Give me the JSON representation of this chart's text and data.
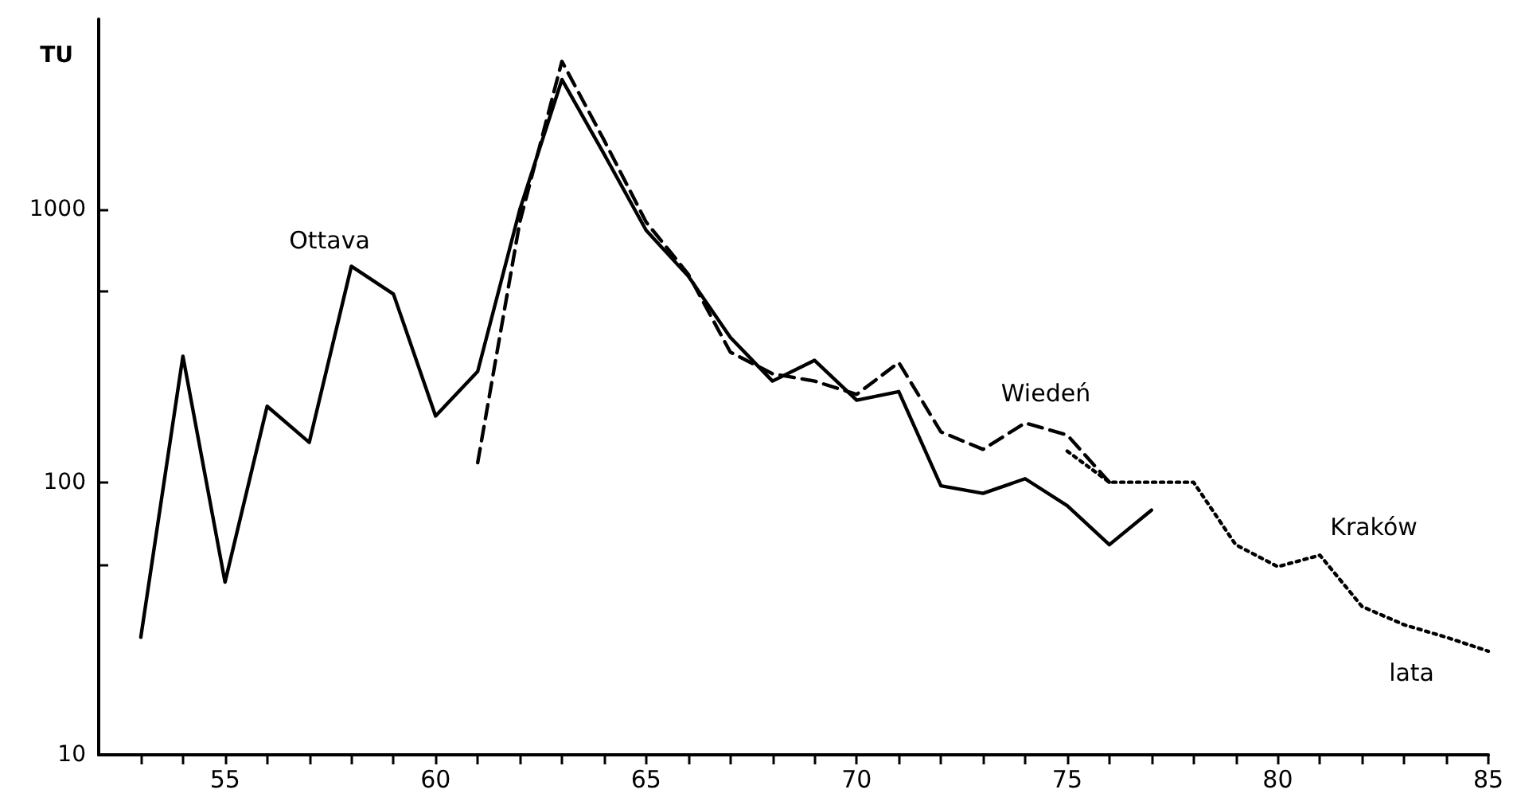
{
  "chart_data": {
    "type": "line",
    "xlabel": "lata",
    "ylabel": "TU",
    "log": "y",
    "grid": false,
    "legend": false,
    "marker": "none",
    "xlim": [
      52,
      85
    ],
    "ylim": [
      10,
      5000
    ],
    "xticks": [
      {
        "value": 53,
        "label": null
      },
      {
        "value": 54,
        "label": null
      },
      55,
      {
        "value": 56,
        "label": null
      },
      {
        "value": 57,
        "label": null
      },
      {
        "value": 58,
        "label": null
      },
      {
        "value": 59,
        "label": null
      },
      60,
      {
        "value": 61,
        "label": null
      },
      {
        "value": 62,
        "label": null
      },
      {
        "value": 63,
        "label": null
      },
      {
        "value": 64,
        "label": null
      },
      65,
      {
        "value": 66,
        "label": null
      },
      {
        "value": 67,
        "label": null
      },
      {
        "value": 68,
        "label": null
      },
      {
        "value": 69,
        "label": null
      },
      70,
      {
        "value": 71,
        "label": null
      },
      {
        "value": 72,
        "label": null
      },
      {
        "value": 73,
        "label": null
      },
      {
        "value": 74,
        "label": null
      },
      75,
      {
        "value": 76,
        "label": null
      },
      {
        "value": 77,
        "label": null
      },
      {
        "value": 78,
        "label": null
      },
      {
        "value": 79,
        "label": null
      },
      80,
      {
        "value": 81,
        "label": null
      },
      {
        "value": 82,
        "label": null
      },
      {
        "value": 83,
        "label": null
      },
      {
        "value": 84,
        "label": null
      },
      85
    ],
    "yticks": [
      10,
      {
        "value": 50,
        "label": null
      },
      100,
      {
        "value": 500,
        "label": null
      },
      1000
    ],
    "series": [
      {
        "name": "Ottava",
        "color": "#000000",
        "line_style": "solid",
        "x": [
          53,
          54,
          55,
          56,
          57,
          58,
          59,
          60,
          61,
          62,
          63,
          64,
          65,
          66,
          67,
          68,
          69,
          70,
          71,
          72,
          73,
          74,
          75,
          76,
          77
        ],
        "values": [
          27,
          290,
          43,
          190,
          140,
          620,
          490,
          175,
          255,
          1000,
          3000,
          1600,
          840,
          570,
          340,
          235,
          280,
          200,
          215,
          97,
          91,
          103,
          82,
          59,
          79
        ]
      },
      {
        "name": "Wiedeń",
        "color": "#000000",
        "line_style": "dashed",
        "x": [
          61,
          62,
          63,
          64,
          65,
          66,
          67,
          68,
          69,
          70,
          71,
          72,
          73,
          74,
          75,
          76
        ],
        "values": [
          118,
          900,
          3500,
          1800,
          900,
          580,
          300,
          250,
          235,
          210,
          275,
          153,
          132,
          165,
          149,
          100
        ]
      },
      {
        "name": "Kraków",
        "color": "#000000",
        "line_style": "dotted",
        "x": [
          75,
          76,
          77,
          78,
          79,
          80,
          81,
          82,
          83,
          84,
          85
        ],
        "values": [
          130,
          100,
          100,
          100,
          59,
          49,
          54,
          35,
          30,
          27,
          24
        ]
      }
    ]
  }
}
